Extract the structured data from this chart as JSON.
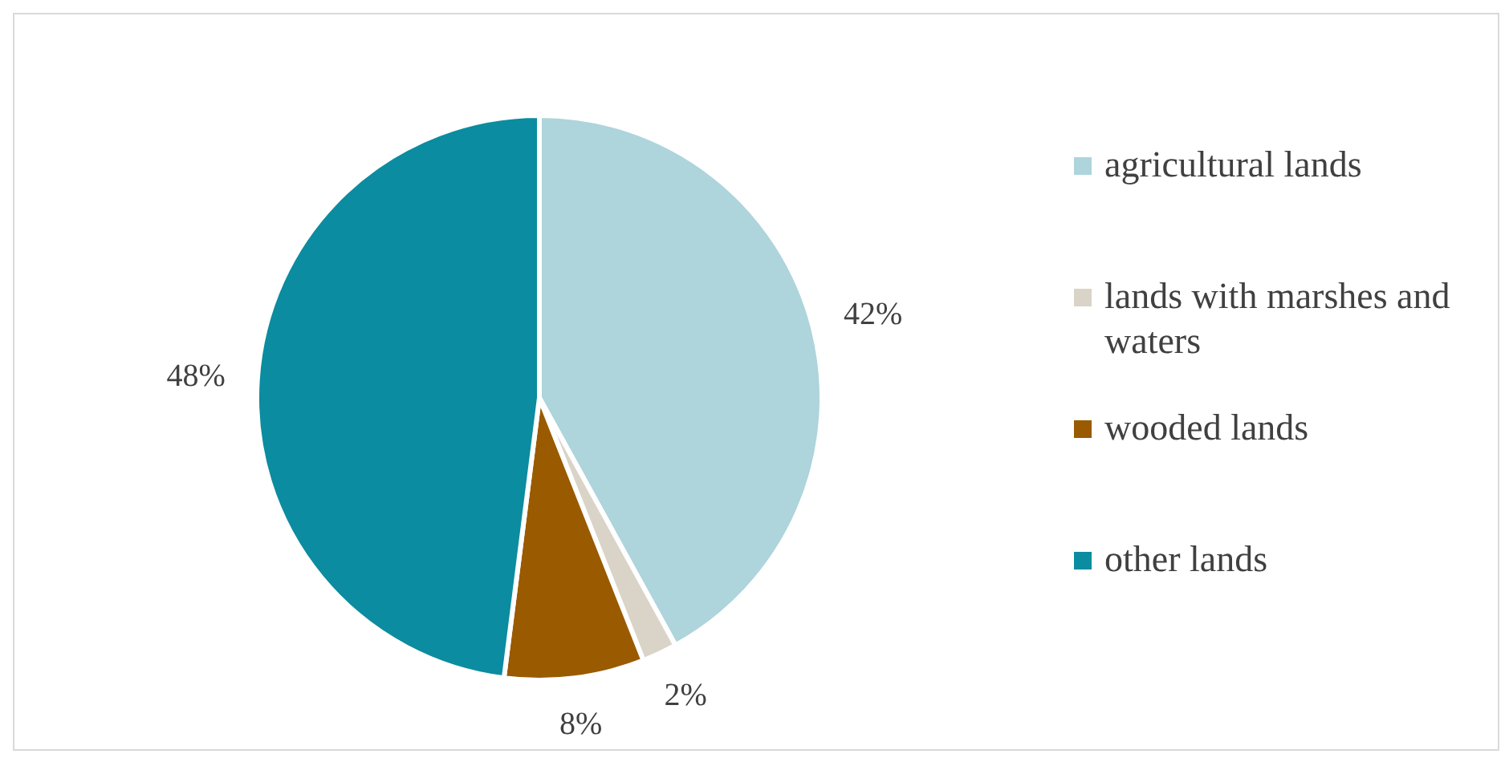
{
  "chart_data": {
    "type": "pie",
    "categories": [
      "agricultural lands",
      "lands with marshes and waters",
      "wooded lands",
      "other lands"
    ],
    "values": [
      42,
      2,
      8,
      48
    ],
    "colors": [
      "#aed4dc",
      "#d9d4c7",
      "#9a5a00",
      "#0b8ca0"
    ],
    "value_labels": [
      "42%",
      "2%",
      "8%",
      "48%"
    ],
    "legend": "right"
  }
}
